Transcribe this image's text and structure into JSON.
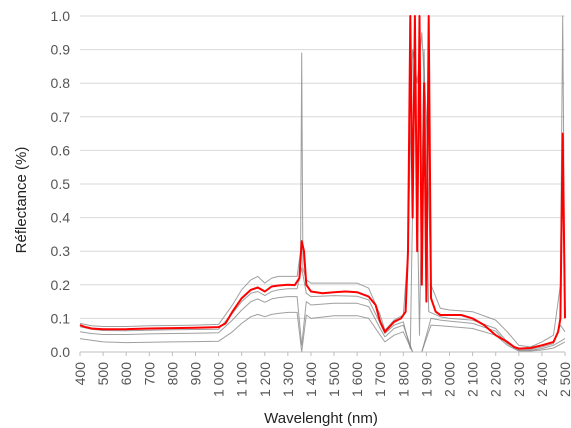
{
  "chart_data": {
    "type": "line",
    "title": "",
    "xlabel": "Wavelenght (nm)",
    "ylabel": "Réflectance (%)",
    "xlim": [
      400,
      2500
    ],
    "ylim": [
      0.0,
      1.0
    ],
    "x_ticks": [
      400,
      500,
      600,
      700,
      800,
      900,
      1000,
      1100,
      1200,
      1300,
      1400,
      1500,
      1600,
      1700,
      1800,
      1900,
      2000,
      2100,
      2200,
      2300,
      2400,
      2500
    ],
    "x_tick_labels": [
      "400",
      "500",
      "600",
      "700",
      "800",
      "900",
      "1 000",
      "1 100",
      "1 200",
      "1 300",
      "1 400",
      "1 500",
      "1 600",
      "1 700",
      "1 800",
      "1 900",
      "2 000",
      "2 100",
      "2 200",
      "2 300",
      "2 400",
      "2 500"
    ],
    "y_ticks": [
      0.0,
      0.1,
      0.2,
      0.3,
      0.4,
      0.5,
      0.6,
      0.7,
      0.8,
      0.9,
      1.0
    ],
    "y_tick_labels": [
      "0.0",
      "0.1",
      "0.2",
      "0.3",
      "0.4",
      "0.5",
      "0.6",
      "0.7",
      "0.8",
      "0.9",
      "1.0"
    ],
    "grid": "horizontal",
    "legend": "none",
    "colors": {
      "mean": "#ff0000",
      "samples": "#7f7f7f",
      "grid": "#d9d9d9"
    },
    "series": [
      {
        "role": "mean",
        "x": [
          400,
          420,
          450,
          500,
          600,
          700,
          800,
          900,
          1000,
          1030,
          1060,
          1100,
          1140,
          1170,
          1200,
          1230,
          1260,
          1300,
          1330,
          1350,
          1360,
          1370,
          1380,
          1400,
          1450,
          1500,
          1550,
          1600,
          1650,
          1680,
          1700,
          1720,
          1740,
          1760,
          1790,
          1810,
          1820,
          1830,
          1840,
          1850,
          1860,
          1870,
          1880,
          1890,
          1900,
          1910,
          1920,
          1940,
          1960,
          2000,
          2050,
          2100,
          2150,
          2200,
          2250,
          2280,
          2300,
          2350,
          2400,
          2450,
          2470,
          2480,
          2490,
          2500
        ],
        "y": [
          0.08,
          0.075,
          0.07,
          0.068,
          0.068,
          0.07,
          0.071,
          0.072,
          0.074,
          0.085,
          0.12,
          0.16,
          0.185,
          0.192,
          0.18,
          0.195,
          0.198,
          0.2,
          0.199,
          0.22,
          0.33,
          0.3,
          0.2,
          0.18,
          0.175,
          0.178,
          0.18,
          0.178,
          0.165,
          0.14,
          0.09,
          0.06,
          0.075,
          0.09,
          0.1,
          0.12,
          0.3,
          1.0,
          0.4,
          1.0,
          0.3,
          1.0,
          0.2,
          0.8,
          0.15,
          1.0,
          0.16,
          0.12,
          0.11,
          0.11,
          0.11,
          0.1,
          0.08,
          0.05,
          0.03,
          0.015,
          0.01,
          0.012,
          0.02,
          0.03,
          0.06,
          0.1,
          0.65,
          0.1
        ]
      },
      {
        "role": "samples",
        "name": "",
        "x": [
          400,
          450,
          500,
          600,
          700,
          800,
          900,
          1000,
          1060,
          1100,
          1140,
          1170,
          1200,
          1230,
          1260,
          1300,
          1340,
          1355,
          1360,
          1365,
          1380,
          1400,
          1500,
          1600,
          1650,
          1700,
          1720,
          1760,
          1800,
          1820,
          1840,
          1860,
          1880,
          1900,
          1920,
          1960,
          2000,
          2100,
          2200,
          2250,
          2300,
          2350,
          2400,
          2450,
          2480,
          2490,
          2500
        ],
        "y": [
          0.085,
          0.078,
          0.076,
          0.076,
          0.078,
          0.079,
          0.08,
          0.082,
          0.14,
          0.185,
          0.215,
          0.225,
          0.205,
          0.22,
          0.225,
          0.225,
          0.225,
          0.3,
          0.89,
          0.25,
          0.215,
          0.205,
          0.205,
          0.205,
          0.19,
          0.11,
          0.065,
          0.095,
          0.11,
          0.3,
          0.9,
          0.8,
          0.95,
          0.7,
          0.2,
          0.13,
          0.125,
          0.12,
          0.095,
          0.06,
          0.02,
          0.015,
          0.03,
          0.05,
          0.2,
          1.0,
          0.1
        ]
      },
      {
        "role": "samples",
        "name": "",
        "x": [
          400,
          450,
          500,
          600,
          700,
          800,
          900,
          1000,
          1060,
          1100,
          1140,
          1170,
          1200,
          1230,
          1260,
          1300,
          1340,
          1360,
          1380,
          1400,
          1500,
          1600,
          1650,
          1700,
          1720,
          1760,
          1800,
          1830,
          1850,
          1870,
          1890,
          1910,
          1960,
          2000,
          2100,
          2200,
          2250,
          2300,
          2350,
          2400,
          2450,
          2480,
          2500
        ],
        "y": [
          0.075,
          0.068,
          0.064,
          0.063,
          0.065,
          0.066,
          0.067,
          0.068,
          0.115,
          0.15,
          0.175,
          0.18,
          0.168,
          0.18,
          0.185,
          0.188,
          0.188,
          0.25,
          0.175,
          0.165,
          0.168,
          0.166,
          0.155,
          0.085,
          0.055,
          0.08,
          0.09,
          0.01,
          0.85,
          0.05,
          0.9,
          0.12,
          0.105,
          0.1,
          0.095,
          0.07,
          0.03,
          0.008,
          0.008,
          0.015,
          0.025,
          0.08,
          0.06
        ]
      },
      {
        "role": "samples",
        "name": "",
        "x": [
          400,
          450,
          500,
          600,
          700,
          800,
          900,
          1000,
          1060,
          1100,
          1140,
          1170,
          1200,
          1230,
          1260,
          1300,
          1340,
          1360,
          1380,
          1400,
          1500,
          1600,
          1650,
          1700,
          1720,
          1760,
          1800,
          1840,
          1880,
          1920,
          1960,
          2000,
          2100,
          2200,
          2250,
          2300,
          2350,
          2400,
          2450,
          2500
        ],
        "y": [
          0.06,
          0.055,
          0.052,
          0.052,
          0.054,
          0.055,
          0.056,
          0.057,
          0.095,
          0.125,
          0.15,
          0.158,
          0.148,
          0.158,
          0.162,
          0.165,
          0.165,
          0.02,
          0.15,
          0.14,
          0.145,
          0.145,
          0.135,
          0.07,
          0.045,
          0.07,
          0.08,
          0.0,
          0.0,
          0.1,
          0.095,
          0.092,
          0.085,
          0.062,
          0.025,
          0.005,
          0.005,
          0.01,
          0.02,
          0.04
        ]
      },
      {
        "role": "samples",
        "name": "",
        "x": [
          400,
          450,
          500,
          600,
          700,
          800,
          900,
          1000,
          1060,
          1100,
          1140,
          1170,
          1200,
          1230,
          1260,
          1300,
          1340,
          1360,
          1380,
          1400,
          1500,
          1600,
          1650,
          1700,
          1720,
          1760,
          1800,
          1840,
          1880,
          1920,
          1960,
          2000,
          2100,
          2200,
          2250,
          2300,
          2350,
          2400,
          2450,
          2500
        ],
        "y": [
          0.04,
          0.035,
          0.03,
          0.028,
          0.029,
          0.03,
          0.031,
          0.032,
          0.06,
          0.085,
          0.105,
          0.112,
          0.105,
          0.112,
          0.115,
          0.118,
          0.118,
          0.0,
          0.11,
          0.1,
          0.108,
          0.108,
          0.1,
          0.05,
          0.03,
          0.05,
          0.06,
          0.0,
          0.0,
          0.08,
          0.078,
          0.076,
          0.07,
          0.05,
          0.02,
          0.003,
          0.003,
          0.006,
          0.012,
          0.03
        ]
      }
    ]
  }
}
